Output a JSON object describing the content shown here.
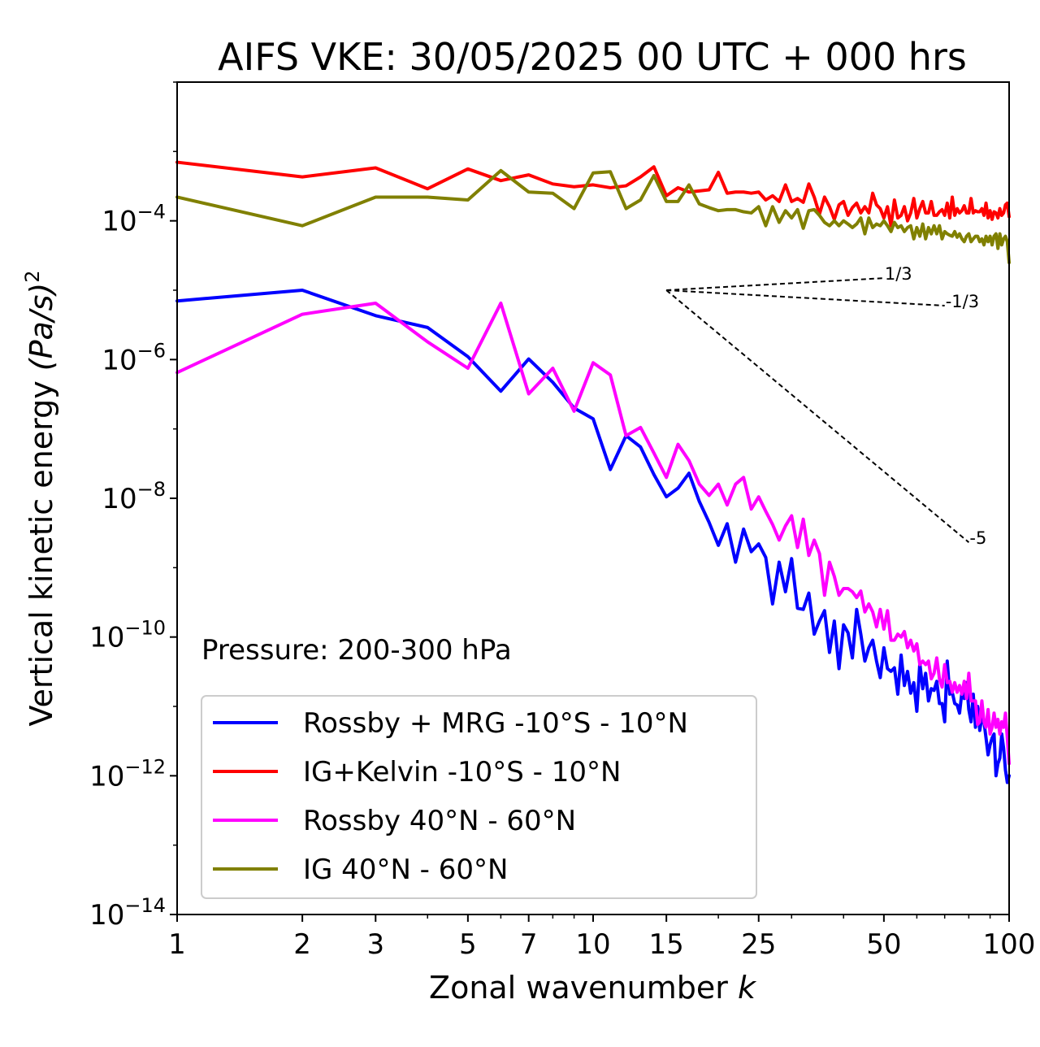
{
  "chart_data": {
    "type": "line",
    "title": "AIFS VKE: 30/05/2025 00 UTC + 000 hrs",
    "xlabel": {
      "main": "Zonal wavenumber",
      "italic": "k"
    },
    "ylabel": {
      "main": "Vertical kinetic energy",
      "italic": "(Pa/s)",
      "power": "2"
    },
    "x_scale": "log",
    "y_scale": "log",
    "xlim": [
      1,
      100
    ],
    "ylim": [
      1e-14,
      0.01
    ],
    "x_ticks": [
      {
        "value": 1,
        "label": "1"
      },
      {
        "value": 2,
        "label": "2"
      },
      {
        "value": 3,
        "label": "3"
      },
      {
        "value": 5,
        "label": "5"
      },
      {
        "value": 7,
        "label": "7"
      },
      {
        "value": 10,
        "label": "10"
      },
      {
        "value": 15,
        "label": "15"
      },
      {
        "value": 25,
        "label": "25"
      },
      {
        "value": 50,
        "label": "50"
      },
      {
        "value": 100,
        "label": "100"
      }
    ],
    "y_ticks": [
      {
        "value": 0.0001,
        "base": "10",
        "exp": "−4"
      },
      {
        "value": 1e-06,
        "base": "10",
        "exp": "−6"
      },
      {
        "value": 1e-08,
        "base": "10",
        "exp": "−8"
      },
      {
        "value": 1e-10,
        "base": "10",
        "exp": "−10"
      },
      {
        "value": 1e-12,
        "base": "10",
        "exp": "−12"
      },
      {
        "value": 1e-14,
        "base": "10",
        "exp": "−14"
      }
    ],
    "annotation": "Pressure: 200-300 hPa",
    "legend_position": "lower-left",
    "reference_slopes": [
      {
        "label": "1/3",
        "slope": 0.3333,
        "x0": 15,
        "y0": 1e-05,
        "x1": 50
      },
      {
        "label": "-1/3",
        "slope": -0.3333,
        "x0": 15,
        "y0": 1e-05,
        "x1": 70
      },
      {
        "label": "-5",
        "slope": -5,
        "x0": 15,
        "y0": 1e-05,
        "x1": 80
      }
    ],
    "series": [
      {
        "name": "Rossby + MRG -10°S - 10°N",
        "color": "#0000ff",
        "x": [
          1,
          2,
          3,
          4,
          5,
          6,
          7,
          8,
          9,
          10,
          11,
          12,
          13,
          14,
          15,
          16,
          17,
          18,
          19,
          20,
          21,
          22,
          23,
          24,
          25,
          26,
          27,
          28,
          29,
          30,
          31,
          32,
          33,
          34,
          35,
          36,
          37,
          38,
          39,
          40,
          41,
          42,
          43,
          44,
          45,
          46,
          47,
          48,
          49,
          50,
          51,
          52,
          53,
          54,
          55,
          56,
          57,
          58,
          59,
          60,
          61,
          62,
          63,
          64,
          65,
          66,
          67,
          68,
          69,
          70,
          71,
          72,
          73,
          74,
          75,
          76,
          77,
          78,
          79,
          80,
          81,
          82,
          83,
          84,
          85,
          86,
          87,
          88,
          89,
          90,
          91,
          92,
          93,
          94,
          95,
          96,
          97,
          98,
          99,
          100
        ],
        "y": [
          7e-06,
          1e-05,
          4.3e-06,
          2.9e-06,
          1.1e-06,
          3.5e-07,
          1.02e-06,
          4.7e-07,
          2e-07,
          1.4e-07,
          2.6e-08,
          8e-08,
          5.5e-08,
          2.2e-08,
          1.05e-08,
          1.4e-08,
          2.3e-08,
          9e-09,
          4.5e-09,
          2.1e-09,
          4.3e-09,
          1.2e-09,
          3.6e-09,
          1.7e-09,
          2.2e-09,
          1.4e-09,
          3e-10,
          1.2e-09,
          4.5e-10,
          1.35e-09,
          2.6e-10,
          2.5e-10,
          4.3e-10,
          1.1e-10,
          1.7e-10,
          2.4e-10,
          6e-11,
          1.7e-10,
          3.5e-11,
          1.5e-10,
          1.15e-10,
          5e-11,
          2.5e-10,
          1.1e-10,
          4.5e-11,
          7e-11,
          9e-11,
          4.5e-11,
          2.6e-11,
          7e-11,
          3.5e-11,
          3.2e-11,
          3.6e-11,
          1.5e-11,
          5.5e-11,
          2e-11,
          3.2e-11,
          1.55e-11,
          2.2e-11,
          8.5e-12,
          4.2e-11,
          1.8e-11,
          3e-11,
          1.2e-11,
          1.8e-11,
          1.7e-11,
          2.3e-11,
          1.1e-11,
          1.1e-11,
          6e-12,
          4.5e-11,
          1.5e-11,
          1.6e-11,
          1.1e-11,
          1.05e-11,
          8e-12,
          1.6e-11,
          1.3e-11,
          2.2e-11,
          9e-12,
          6e-12,
          1.5e-11,
          5e-12,
          1e-11,
          4.5e-12,
          7e-12,
          6e-12,
          3.5e-12,
          2e-12,
          2.8e-12,
          3.5e-12,
          4e-12,
          1e-12,
          1.5e-12,
          1.8e-12,
          4e-12,
          2.5e-12,
          1.2e-12,
          8e-13,
          1e-12
        ]
      },
      {
        "name": "IG+Kelvin -10°S - 10°N",
        "color": "#ff0000",
        "x": [
          1,
          2,
          3,
          4,
          5,
          6,
          7,
          8,
          9,
          10,
          11,
          12,
          13,
          14,
          15,
          16,
          17,
          18,
          19,
          20,
          21,
          22,
          23,
          24,
          25,
          26,
          27,
          28,
          29,
          30,
          31,
          32,
          33,
          34,
          35,
          36,
          37,
          38,
          39,
          40,
          41,
          42,
          43,
          44,
          45,
          46,
          47,
          48,
          49,
          50,
          51,
          52,
          53,
          54,
          55,
          56,
          57,
          58,
          59,
          60,
          61,
          62,
          63,
          64,
          65,
          66,
          67,
          68,
          69,
          70,
          71,
          72,
          73,
          74,
          75,
          76,
          77,
          78,
          79,
          80,
          81,
          82,
          83,
          84,
          85,
          86,
          87,
          88,
          89,
          90,
          91,
          92,
          93,
          94,
          95,
          96,
          97,
          98,
          99,
          100
        ],
        "y": [
          0.0007,
          0.00043,
          0.00058,
          0.00029,
          0.00056,
          0.00038,
          0.00046,
          0.00034,
          0.00031,
          0.00033,
          0.0003,
          0.00032,
          0.00043,
          0.0006,
          0.00023,
          0.0003,
          0.00026,
          0.00027,
          0.00028,
          0.0005,
          0.00025,
          0.00026,
          0.00026,
          0.00025,
          0.00026,
          0.0002,
          0.00023,
          0.00019,
          0.00033,
          0.00019,
          0.00021,
          0.000185,
          0.00034,
          0.00022,
          0.000125,
          0.00022,
          0.00016,
          0.000105,
          0.00017,
          0.00019,
          0.00012,
          0.000155,
          0.00018,
          0.00013,
          0.00016,
          0.00013,
          0.00025,
          0.00017,
          0.00015,
          0.00011,
          0.00016,
          8.5e-05,
          0.0002,
          0.00011,
          0.00012,
          0.00016,
          0.0001,
          0.00013,
          0.00021,
          0.00011,
          0.00015,
          0.00019,
          0.00013,
          0.00013,
          0.00019,
          0.00012,
          0.00012,
          0.000135,
          0.000145,
          0.00012,
          0.00018,
          0.00011,
          0.00022,
          0.00012,
          0.00015,
          0.00013,
          0.00014,
          0.000165,
          0.00013,
          0.00013,
          0.00021,
          0.00013,
          0.00014,
          0.000135,
          0.000135,
          0.00015,
          0.00012,
          0.00018,
          0.00011,
          0.00014,
          0.000105,
          0.000135,
          0.00013,
          0.00011,
          0.00015,
          0.00012,
          0.00013,
          0.00017,
          0.00018,
          0.000115
        ]
      },
      {
        "name": "Rossby 40°N - 60°N",
        "color": "#ff00ff",
        "x": [
          1,
          2,
          3,
          4,
          5,
          6,
          7,
          8,
          9,
          10,
          11,
          12,
          13,
          14,
          15,
          16,
          17,
          18,
          19,
          20,
          21,
          22,
          23,
          24,
          25,
          26,
          27,
          28,
          29,
          30,
          31,
          32,
          33,
          34,
          35,
          36,
          37,
          38,
          39,
          40,
          41,
          42,
          43,
          44,
          45,
          46,
          47,
          48,
          49,
          50,
          51,
          52,
          53,
          54,
          55,
          56,
          57,
          58,
          59,
          60,
          61,
          62,
          63,
          64,
          65,
          66,
          67,
          68,
          69,
          70,
          71,
          72,
          73,
          74,
          75,
          76,
          77,
          78,
          79,
          80,
          81,
          82,
          83,
          84,
          85,
          86,
          87,
          88,
          89,
          90,
          91,
          92,
          93,
          94,
          95,
          96,
          97,
          98,
          99,
          100
        ],
        "y": [
          6.5e-07,
          4.5e-06,
          6.5e-06,
          1.8e-06,
          7.5e-07,
          6.5e-06,
          3.2e-07,
          7.5e-07,
          1.8e-07,
          9e-07,
          6e-07,
          8e-08,
          1.05e-07,
          4.5e-08,
          2e-08,
          6e-08,
          3.5e-08,
          1.6e-08,
          1.1e-08,
          1.6e-08,
          8e-09,
          1.6e-08,
          2e-08,
          7e-09,
          1.05e-08,
          6.5e-09,
          4.2e-09,
          2.5e-09,
          4e-09,
          5.6e-09,
          1.95e-09,
          5e-09,
          1.5e-09,
          2.5e-09,
          1.6e-09,
          4e-10,
          1.2e-09,
          7.5e-10,
          4e-10,
          5e-10,
          5e-10,
          4.5e-10,
          3.7e-10,
          4.6e-10,
          2.3e-10,
          3e-10,
          2.3e-10,
          1.4e-10,
          2.5e-10,
          1.3e-10,
          2.4e-10,
          9e-11,
          9e-11,
          1.1e-10,
          1e-10,
          1.2e-10,
          7e-11,
          9e-11,
          6.3e-11,
          8e-11,
          4e-11,
          4.5e-11,
          4e-11,
          4.5e-11,
          2.5e-11,
          3e-11,
          5e-11,
          2.5e-11,
          1.9e-11,
          4e-11,
          2.2e-11,
          2.3e-11,
          1.6e-11,
          2.2e-11,
          1.6e-11,
          2e-11,
          1.5e-11,
          2.3e-11,
          1.3e-11,
          3e-11,
          1.2e-11,
          1.2e-11,
          1.2e-11,
          5.5e-12,
          6e-12,
          1.2e-11,
          6e-12,
          5e-12,
          9e-12,
          4e-12,
          5e-12,
          8e-12,
          5e-12,
          6.5e-12,
          4e-12,
          6e-12,
          5e-12,
          8e-12,
          3.5e-12,
          1.5e-12
        ]
      },
      {
        "name": "IG 40°N - 60°N",
        "color": "#808000",
        "x": [
          1,
          2,
          3,
          4,
          5,
          6,
          7,
          8,
          9,
          10,
          11,
          12,
          13,
          14,
          15,
          16,
          17,
          18,
          19,
          20,
          21,
          22,
          23,
          24,
          25,
          26,
          27,
          28,
          29,
          30,
          31,
          32,
          33,
          34,
          35,
          36,
          37,
          38,
          39,
          40,
          41,
          42,
          43,
          44,
          45,
          46,
          47,
          48,
          49,
          50,
          51,
          52,
          53,
          54,
          55,
          56,
          57,
          58,
          59,
          60,
          61,
          62,
          63,
          64,
          65,
          66,
          67,
          68,
          69,
          70,
          71,
          72,
          73,
          74,
          75,
          76,
          77,
          78,
          79,
          80,
          81,
          82,
          83,
          84,
          85,
          86,
          87,
          88,
          89,
          90,
          91,
          92,
          93,
          94,
          95,
          96,
          97,
          98,
          99,
          100
        ],
        "y": [
          0.00022,
          8.5e-05,
          0.00022,
          0.00022,
          0.0002,
          0.00053,
          0.00026,
          0.00025,
          0.00015,
          0.00049,
          0.00051,
          0.00015,
          0.0002,
          0.00045,
          0.00019,
          0.00019,
          0.00033,
          0.000175,
          0.000155,
          0.00014,
          0.000145,
          0.000145,
          0.000135,
          0.00013,
          0.00016,
          8.5e-05,
          0.00016,
          9.5e-05,
          0.00014,
          0.00011,
          0.000145,
          7.8e-05,
          0.00014,
          0.000145,
          0.00012,
          9.5e-05,
          8.5e-05,
          0.0001,
          8.5e-05,
          0.0001,
          9e-05,
          8e-05,
          9e-05,
          0.00011,
          6.5e-05,
          0.00011,
          8e-05,
          9e-05,
          8.5e-05,
          0.0001,
          8.5e-05,
          7e-05,
          9.5e-05,
          8e-05,
          8.5e-05,
          7e-05,
          8e-05,
          8.5e-05,
          5.5e-05,
          8e-05,
          6e-05,
          9e-05,
          5.5e-05,
          8e-05,
          6.5e-05,
          8.5e-05,
          6.5e-05,
          8.5e-05,
          5.5e-05,
          7e-05,
          6.5e-05,
          6.2e-05,
          6e-05,
          7e-05,
          5.8e-05,
          6.5e-05,
          5.5e-05,
          5e-05,
          6e-05,
          6.5e-05,
          5e-05,
          5.5e-05,
          6e-05,
          6e-05,
          5e-05,
          5.5e-05,
          4.5e-05,
          6e-05,
          5e-05,
          6e-05,
          4.5e-05,
          6e-05,
          6.5e-05,
          4e-05,
          6.5e-05,
          4.5e-05,
          5.5e-05,
          6e-05,
          5e-05,
          2.5e-05
        ]
      }
    ]
  }
}
